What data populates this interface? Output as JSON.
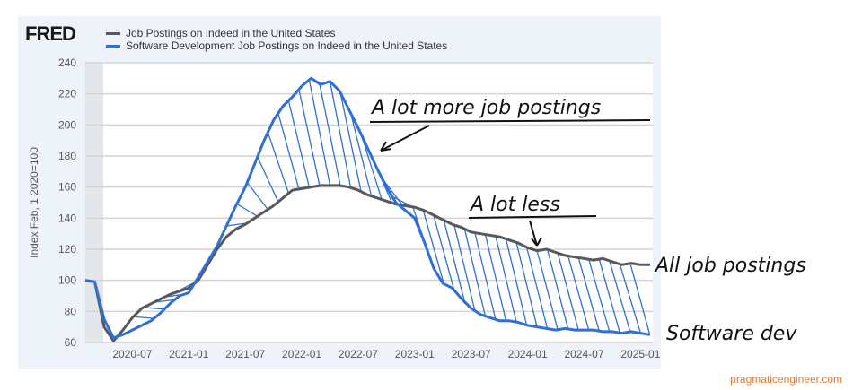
{
  "header": {
    "logo": "FRED"
  },
  "chart_data": {
    "type": "line",
    "title": "",
    "ylabel": "Index Feb, 1 2020=100",
    "xlabel": "",
    "ylim": [
      60,
      240
    ],
    "yticks": [
      60,
      80,
      100,
      120,
      140,
      160,
      180,
      200,
      220,
      240
    ],
    "xstart": "2020-02",
    "xend": "2025-02",
    "xticks": [
      "2020-07",
      "2021-01",
      "2021-07",
      "2022-01",
      "2022-07",
      "2023-01",
      "2023-07",
      "2024-01",
      "2024-07",
      "2025-01"
    ],
    "grid": true,
    "legend_position": "top-left",
    "series": [
      {
        "name": "Job Postings on Indeed in the United States",
        "color": "#595959",
        "values": [
          100,
          99,
          70,
          61,
          68,
          76,
          82,
          85,
          88,
          91,
          93,
          95,
          100,
          110,
          120,
          128,
          133,
          136,
          140,
          144,
          148,
          153,
          158,
          159,
          160,
          161,
          161,
          161,
          160,
          158,
          155,
          153,
          151,
          149,
          148,
          147,
          145,
          142,
          139,
          136,
          134,
          131,
          130,
          129,
          128,
          126,
          124,
          121,
          119,
          120,
          118,
          116,
          115,
          114,
          113,
          114,
          112,
          110,
          111,
          110,
          110
        ]
      },
      {
        "name": "Software Development Job Postings on Indeed in the United States",
        "color": "#2f6fd6",
        "values": [
          100,
          99,
          75,
          63,
          65,
          68,
          71,
          74,
          79,
          85,
          90,
          92,
          102,
          112,
          122,
          135,
          148,
          160,
          175,
          190,
          203,
          212,
          218,
          225,
          230,
          226,
          228,
          222,
          210,
          198,
          185,
          172,
          160,
          150,
          145,
          140,
          125,
          108,
          98,
          95,
          88,
          82,
          78,
          76,
          74,
          74,
          73,
          71,
          70,
          69,
          68,
          69,
          68,
          68,
          68,
          67,
          67,
          66,
          67,
          66,
          65
        ]
      }
    ],
    "annotations": [
      "A lot more job postings",
      "A lot less",
      "All job postings",
      "Software dev"
    ]
  },
  "footer": {
    "credit": "pragmaticengineer.com"
  }
}
